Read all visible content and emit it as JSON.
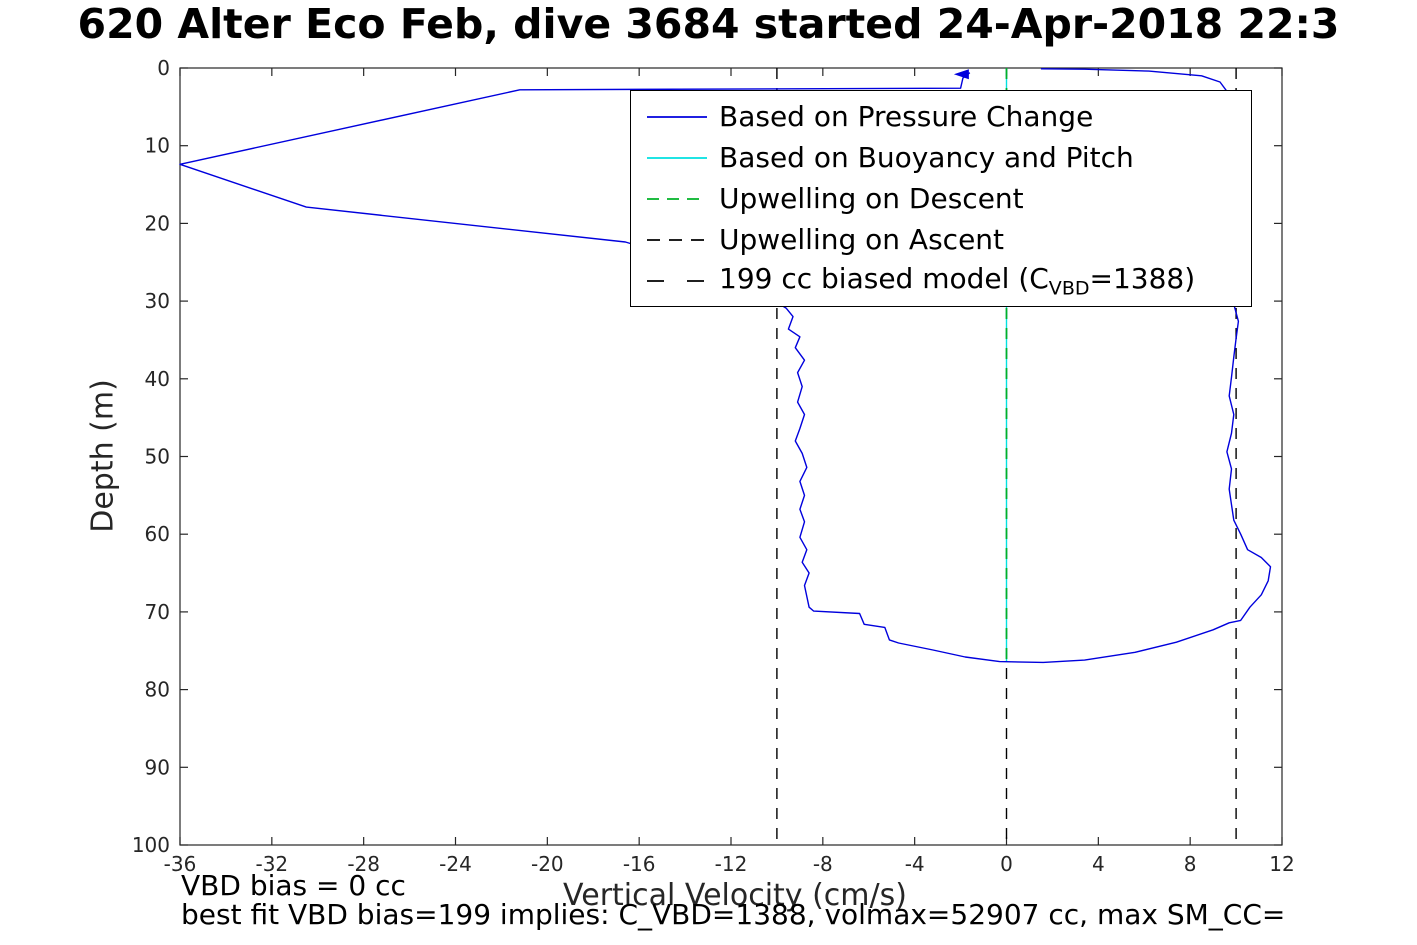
{
  "chart_data": {
    "type": "line",
    "title": "620 Alter Eco Feb, dive 3684 started 24-Apr-2018 22:3",
    "xlabel": "Vertical Velocity (cm/s)",
    "ylabel": "Depth (m)",
    "xlim": [
      -36,
      12
    ],
    "ylim": [
      0,
      100
    ],
    "y_axis_inverted": true,
    "grid": false,
    "x_ticks": [
      -36,
      -32,
      -28,
      -24,
      -20,
      -16,
      -12,
      -8,
      -4,
      0,
      4,
      8,
      12
    ],
    "y_ticks": [
      0,
      10,
      20,
      30,
      40,
      50,
      60,
      70,
      80,
      90,
      100
    ],
    "annotations": {
      "vbd_bias": "VBD bias = 0 cc",
      "best_fit": "best fit VBD bias=199 implies: C_VBD=1388, volmax=52907 cc, max SM_CC="
    },
    "legend": {
      "position": "inside upper right",
      "items": [
        {
          "label": "Based on Pressure Change",
          "color": "#0000dd",
          "dash_sample": ""
        },
        {
          "label": "Based on Buoyancy and Pitch",
          "color": "#00e0e0",
          "dash_sample": ""
        },
        {
          "label": "Upwelling on Descent",
          "color": "#00b227",
          "dash_sample": "12,8"
        },
        {
          "label": "Upwelling on Ascent",
          "color": "#000000",
          "dash_sample": "13,9"
        },
        {
          "label": "199 cc biased model (C_VBD=1388)",
          "pre": "199 cc biased model (C",
          "sub": "VBD",
          "post": "=1388)",
          "color": "#000000",
          "dash_sample": "17,23"
        }
      ]
    },
    "series": [
      {
        "name": "199 cc biased model (C_VBD=1388)",
        "color": "#000000",
        "style": "dashed",
        "width": 1.4,
        "segments": [
          [
            [
              -10,
              0
            ],
            [
              -10,
              100
            ]
          ],
          [
            [
              10,
              0
            ],
            [
              10,
              100
            ]
          ]
        ]
      },
      {
        "name": "Upwelling on Ascent",
        "color": "#000000",
        "style": "dashed",
        "width": 1.4,
        "segments": [
          [
            [
              0,
              0
            ],
            [
              0,
              100
            ]
          ]
        ]
      },
      {
        "name": "Based on Buoyancy and Pitch",
        "color": "#00e0e0",
        "style": "solid",
        "width": 1.4,
        "segments": [
          [
            [
              0,
              0
            ],
            [
              0,
              76.4
            ]
          ]
        ]
      },
      {
        "name": "Upwelling on Descent",
        "color": "#00b227",
        "style": "dashed",
        "width": 1.6,
        "segments": [
          [
            [
              0,
              0
            ],
            [
              0,
              76.4
            ]
          ]
        ]
      },
      {
        "name": "Based on Pressure Change",
        "color": "#0000dd",
        "style": "solid",
        "width": 1.4,
        "segments": [
          [
            [
              -1.6,
              0.6
            ],
            [
              -1.9,
              1.3
            ],
            [
              -2.0,
              2.6
            ],
            [
              -21.2,
              2.8
            ],
            [
              -36,
              12.4
            ],
            [
              -30.5,
              17.9
            ],
            [
              -16.6,
              22.4
            ],
            [
              -12.0,
              26.5
            ],
            [
              -9.6,
              30.9
            ],
            [
              -9.3,
              32.0
            ],
            [
              -9.5,
              33.6
            ],
            [
              -9.0,
              34.6
            ],
            [
              -9.2,
              36.0
            ],
            [
              -8.8,
              37.6
            ],
            [
              -9.1,
              39.2
            ],
            [
              -8.9,
              41.0
            ],
            [
              -9.1,
              43.0
            ],
            [
              -8.8,
              44.6
            ],
            [
              -9.0,
              46.4
            ],
            [
              -9.2,
              48.0
            ],
            [
              -8.9,
              49.6
            ],
            [
              -8.7,
              51.4
            ],
            [
              -9.0,
              53.2
            ],
            [
              -8.8,
              55.0
            ],
            [
              -9.0,
              56.8
            ],
            [
              -8.8,
              58.4
            ],
            [
              -9.0,
              60.4
            ],
            [
              -8.7,
              62.0
            ],
            [
              -8.9,
              63.6
            ],
            [
              -8.6,
              65.0
            ],
            [
              -8.8,
              66.6
            ],
            [
              -8.7,
              68.0
            ],
            [
              -8.6,
              69.4
            ],
            [
              -8.4,
              69.9
            ],
            [
              -6.4,
              70.2
            ],
            [
              -6.2,
              71.6
            ],
            [
              -5.3,
              72.0
            ],
            [
              -5.1,
              73.6
            ],
            [
              -4.7,
              74.0
            ],
            [
              -3.2,
              74.9
            ],
            [
              -1.8,
              75.8
            ],
            [
              -0.3,
              76.4
            ],
            [
              1.6,
              76.5
            ],
            [
              3.4,
              76.2
            ],
            [
              5.6,
              75.2
            ],
            [
              7.4,
              73.9
            ],
            [
              9.0,
              72.3
            ],
            [
              9.7,
              71.4
            ],
            [
              10.2,
              71.1
            ],
            [
              10.6,
              69.4
            ],
            [
              11.1,
              67.8
            ],
            [
              11.4,
              66.0
            ],
            [
              11.5,
              64.2
            ],
            [
              11.1,
              63.0
            ],
            [
              10.5,
              62.0
            ],
            [
              10.2,
              60.0
            ],
            [
              9.9,
              58.2
            ],
            [
              9.8,
              56.2
            ],
            [
              9.7,
              54.2
            ],
            [
              9.8,
              51.6
            ],
            [
              9.6,
              49.4
            ],
            [
              9.8,
              47.0
            ],
            [
              9.9,
              44.6
            ],
            [
              9.7,
              42.2
            ],
            [
              9.8,
              39.8
            ],
            [
              9.9,
              37.2
            ],
            [
              10.0,
              34.8
            ],
            [
              10.1,
              32.6
            ],
            [
              9.9,
              30.4
            ],
            [
              9.8,
              27.5
            ],
            [
              9.9,
              24.5
            ],
            [
              9.8,
              21.5
            ],
            [
              9.9,
              18.5
            ],
            [
              9.8,
              15.5
            ],
            [
              9.9,
              12.5
            ],
            [
              9.8,
              9.5
            ],
            [
              9.9,
              6.5
            ],
            [
              9.8,
              4.5
            ],
            [
              9.6,
              3.0
            ],
            [
              9.3,
              1.8
            ],
            [
              8.5,
              1.0
            ],
            [
              6.2,
              0.4
            ],
            [
              3.4,
              0.15
            ],
            [
              1.5,
              0.1
            ]
          ]
        ]
      }
    ],
    "surface_arrow": {
      "v": -1.9,
      "depth": 0.8,
      "color": "#0000dd"
    }
  }
}
